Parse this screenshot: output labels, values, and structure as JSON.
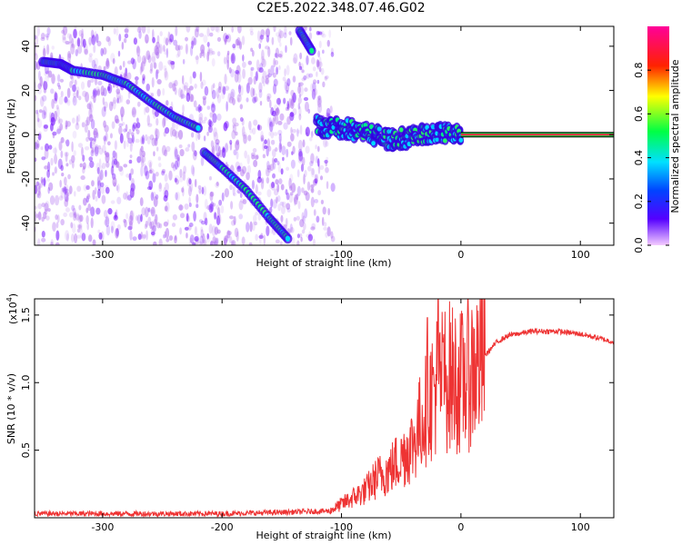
{
  "title": "C2E5.2022.348.07.46.G02",
  "colorbar": {
    "label": "Normalized spectral amplitude",
    "ticks": [
      "0.0",
      "0.2",
      "0.4",
      "0.6",
      "0.8"
    ],
    "range": [
      0,
      1
    ]
  },
  "chart_data": [
    {
      "type": "heatmap",
      "name": "spectrogram",
      "xlabel": "Height of straight line (km)",
      "ylabel": "Frequency (Hz)",
      "xlim": [
        -357,
        128
      ],
      "ylim": [
        -50,
        49
      ],
      "xticks": [
        -300,
        -200,
        -100,
        0,
        100
      ],
      "xtick_labels": [
        "-300",
        "-200",
        "-100",
        "0",
        "100"
      ],
      "yticks": [
        40,
        20,
        0,
        -20,
        -40
      ],
      "ytick_labels": [
        "40",
        "20",
        "0",
        "-20",
        "-40"
      ],
      "features": [
        {
          "kind": "doppler-track",
          "points": [
            [
              -350,
              33
            ],
            [
              -335,
              32
            ],
            [
              -325,
              29
            ],
            [
              -300,
              27
            ],
            [
              -280,
              23
            ],
            [
              -260,
              15
            ],
            [
              -240,
              8
            ],
            [
              -220,
              3
            ]
          ]
        },
        {
          "kind": "doppler-track",
          "points": [
            [
              -215,
              -8
            ],
            [
              -200,
              -15
            ],
            [
              -180,
              -25
            ],
            [
              -160,
              -38
            ],
            [
              -145,
              -47
            ]
          ]
        },
        {
          "kind": "doppler-track",
          "points": [
            [
              -135,
              47
            ],
            [
              -125,
              38
            ]
          ]
        },
        {
          "kind": "carrier-blob",
          "points": [
            [
              -120,
              4
            ],
            [
              -100,
              3
            ],
            [
              -80,
              1
            ],
            [
              -60,
              -2
            ],
            [
              -40,
              -1
            ],
            [
              -20,
              1
            ],
            [
              0,
              0
            ]
          ]
        },
        {
          "kind": "carrier-line",
          "points": [
            [
              0,
              0
            ],
            [
              128,
              0
            ]
          ]
        }
      ]
    },
    {
      "type": "line",
      "name": "snr",
      "xlabel": "Height of straight line (km)",
      "ylabel": "SNR (10 * v/v)",
      "multiplier_label": "(x10",
      "multiplier_exp": "4",
      "xlim": [
        -357,
        128
      ],
      "ylim": [
        0,
        1.62
      ],
      "xticks": [
        -300,
        -200,
        -100,
        0,
        100
      ],
      "xtick_labels": [
        "-300",
        "-200",
        "-100",
        "0",
        "100"
      ],
      "yticks": [
        0.5,
        1.0,
        1.5
      ],
      "ytick_labels": [
        "0.5",
        "1.0",
        "1.5"
      ],
      "color": "#ee3333",
      "baseline": [
        [
          -357,
          0.03
        ],
        [
          -300,
          0.03
        ],
        [
          -250,
          0.03
        ],
        [
          -200,
          0.03
        ],
        [
          -150,
          0.04
        ],
        [
          -110,
          0.05
        ]
      ],
      "envelope": [
        [
          -110,
          0.05
        ],
        [
          -100,
          0.1
        ],
        [
          -90,
          0.15
        ],
        [
          -80,
          0.2
        ],
        [
          -70,
          0.3
        ],
        [
          -60,
          0.35
        ],
        [
          -50,
          0.45
        ],
        [
          -40,
          0.55
        ],
        [
          -30,
          0.8
        ],
        [
          -20,
          1.0
        ],
        [
          -10,
          1.05
        ],
        [
          0,
          1.0
        ],
        [
          10,
          1.1
        ],
        [
          20,
          1.2
        ],
        [
          30,
          1.3
        ],
        [
          40,
          1.35
        ],
        [
          60,
          1.38
        ],
        [
          80,
          1.38
        ],
        [
          100,
          1.36
        ],
        [
          115,
          1.33
        ],
        [
          128,
          1.3
        ]
      ],
      "peaks": [
        [
          -50,
          0.58
        ],
        [
          -28,
          1.48
        ],
        [
          -19,
          1.62
        ],
        [
          -15,
          1.3
        ]
      ]
    }
  ]
}
